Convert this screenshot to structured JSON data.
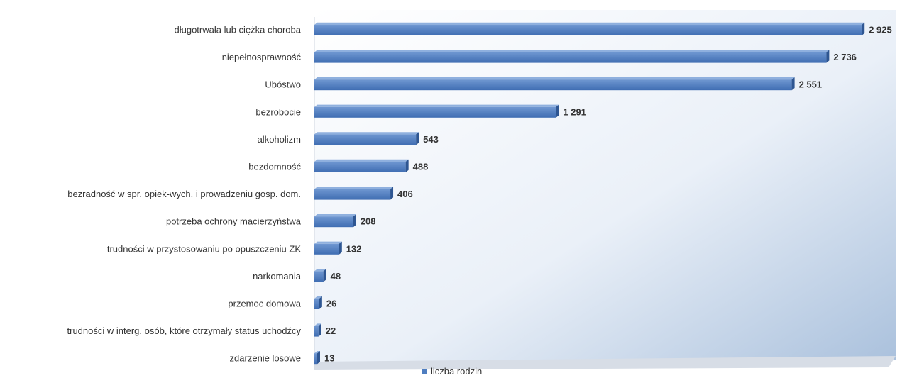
{
  "chart_data": {
    "type": "bar",
    "orientation": "horizontal",
    "categories": [
      "długotrwała lub ciężka choroba",
      "niepełnosprawność",
      "Ubóstwo",
      "bezrobocie",
      "alkoholizm",
      "bezdomność",
      "bezradność w spr. opiek-wych. i prowadzeniu gosp. dom.",
      "potrzeba ochrony macierzyństwa",
      "trudności w przystosowaniu po opuszczeniu ZK",
      "narkomania",
      "przemoc domowa",
      "trudności w interg. osób, które otrzymały status uchodźcy",
      "zdarzenie losowe"
    ],
    "series": [
      {
        "name": "liczba rodzin",
        "values": [
          2925,
          2736,
          2551,
          1291,
          543,
          488,
          406,
          208,
          132,
          48,
          26,
          22,
          13
        ],
        "labels": [
          "2 925",
          "2 736",
          "2 551",
          "1 291",
          "543",
          "488",
          "406",
          "208",
          "132",
          "48",
          "26",
          "22",
          "13"
        ]
      }
    ],
    "xlim": [
      0,
      3000
    ],
    "grid": false,
    "legend_position": "bottom",
    "style": "3d",
    "bar_color": "#4f7ec0"
  },
  "legend": {
    "label": "liczba rodzin"
  }
}
